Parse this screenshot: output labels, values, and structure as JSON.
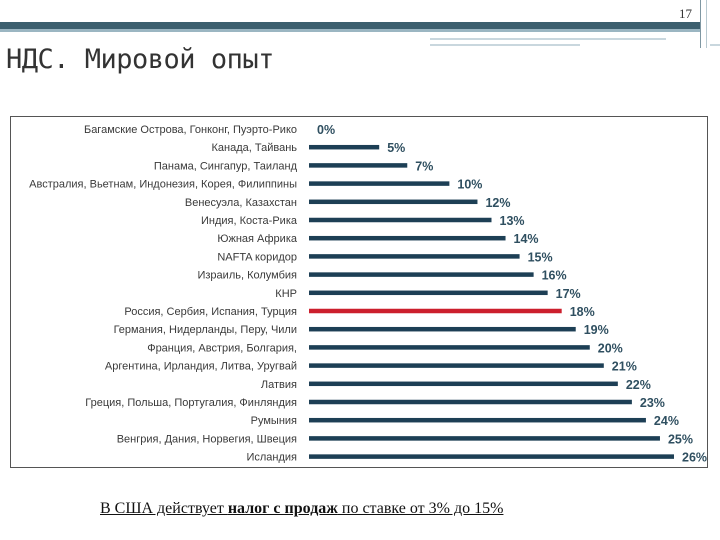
{
  "slide": {
    "number": "17",
    "title": "НДС. Мировой опыт"
  },
  "footnote": {
    "before": "В США действует ",
    "bold": "налог с продаж",
    "after": " по ставке от 3% до 15%"
  },
  "colors": {
    "bar": "#1d3f55",
    "highlight_bar": "#cc1f2d",
    "accent_rule": "#3c5f6e"
  },
  "chart_data": {
    "type": "bar",
    "orientation": "horizontal",
    "categories": [
      "Багамские Острова, Гонконг, Пуэрто-Рико",
      "Канада, Тайвань",
      "Панама, Сингапур, Таиланд",
      "Австралия, Вьетнам, Индонезия, Корея, Филиппины",
      "Венесуэла, Казахстан",
      "Индия, Коста-Рика",
      "Южная Африка",
      "NAFTA коридор",
      "Израиль, Колумбия",
      "КНР",
      "Россия, Сербия, Испания, Турция",
      "Германия, Нидерланды, Перу, Чили",
      "Франция, Австрия, Болгария,",
      "Аргентина, Ирландия, Литва, Уругвай",
      "Латвия",
      "Греция, Польша, Португалия, Финляндия",
      "Румыния",
      "Венгрия, Дания, Норвегия, Швеция",
      "Исландия"
    ],
    "values": [
      0,
      5,
      7,
      10,
      12,
      13,
      14,
      15,
      16,
      17,
      18,
      19,
      20,
      21,
      22,
      23,
      24,
      25,
      26
    ],
    "value_labels": [
      "0%",
      "5%",
      "7%",
      "10%",
      "12%",
      "13%",
      "14%",
      "15%",
      "16%",
      "17%",
      "18%",
      "19%",
      "20%",
      "21%",
      "22%",
      "23%",
      "24%",
      "25%",
      "26%"
    ],
    "highlight_index": 10,
    "xlim": [
      0,
      26
    ],
    "grid": false,
    "legend": "none",
    "title": "",
    "xlabel": "",
    "ylabel": ""
  }
}
